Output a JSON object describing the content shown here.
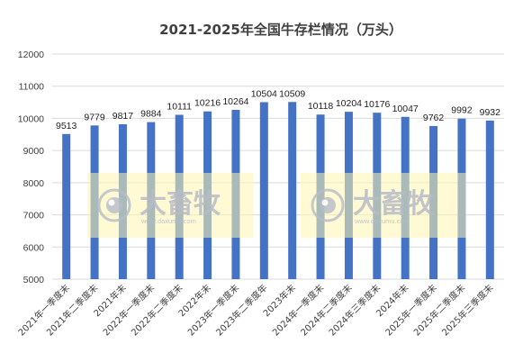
{
  "chart_data": {
    "type": "bar",
    "title": "2021-2025年全国牛存栏情况（万头）",
    "xlabel": "",
    "ylabel": "",
    "categories": [
      "2021年一季度末",
      "2021年二季度末",
      "2021年末",
      "2022年一季度末",
      "2022年二季度末",
      "2022年末",
      "2023年一季度末",
      "2023年二季度年",
      "2023年末",
      "2024年一季度末",
      "2024年二季度末",
      "2024年三季度末",
      "2024年末",
      "2025年一季度末",
      "2025年二季度末",
      "2025年三季度末"
    ],
    "values": [
      9513,
      9779,
      9817,
      9884,
      10111,
      10216,
      10264,
      10504,
      10509,
      10118,
      10204,
      10176,
      10047,
      9762,
      9992,
      9932
    ],
    "ylim": [
      5000,
      12000
    ],
    "yticks": [
      5000,
      6000,
      7000,
      8000,
      9000,
      10000,
      11000,
      12000
    ],
    "grid": true,
    "legend": "none",
    "bar_color": "#4472C4",
    "grid_color": "#D9D9D9"
  },
  "watermark": {
    "text": "大畜牧",
    "url": "www.daxumu.com",
    "logo_icon": "daxumu-logo-icon",
    "box_color": "#FFF6B0",
    "text_color": "#B7BBC7"
  }
}
